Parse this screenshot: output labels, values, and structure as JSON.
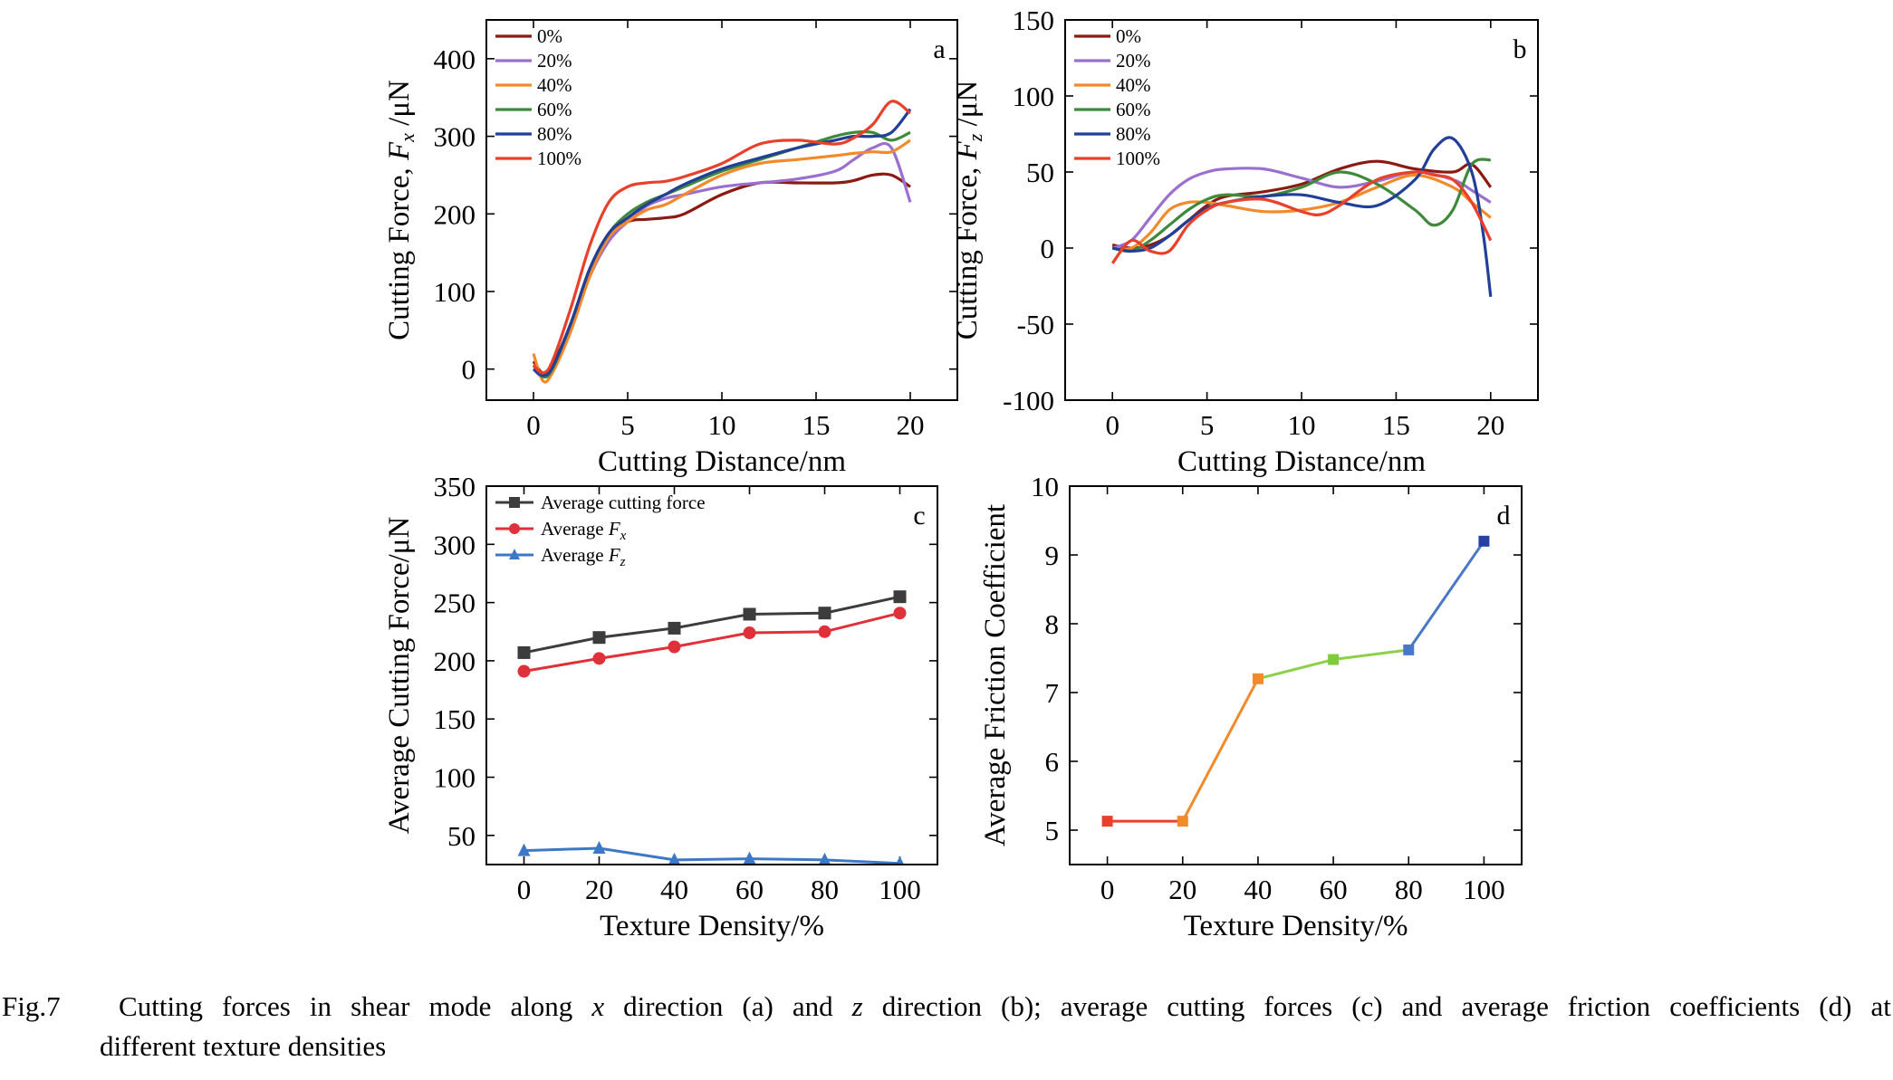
{
  "caption": {
    "label": "Fig.7",
    "parts": [
      "Cutting",
      "forces",
      "in",
      "shear",
      "mode",
      "along",
      "x",
      "direction",
      "(a)",
      "and",
      "z",
      "direction",
      "(b);",
      "average",
      "cutting",
      "forces",
      "(c)",
      "and",
      "average",
      "friction",
      "coefficients",
      "(d)",
      "at"
    ],
    "italic_words": [
      "x",
      "z"
    ],
    "line2": "different texture densities"
  },
  "chart_data": [
    {
      "panel": "a",
      "type": "line",
      "xlabel": "Cutting Distance/nm",
      "ylabel": "Cutting Force, F_x /μN",
      "ylabel_parts": [
        "Cutting Force, ",
        "F",
        "x",
        " /μN"
      ],
      "xlim": [
        -2.5,
        22.5
      ],
      "ylim": [
        -40,
        450
      ],
      "xticks": [
        0,
        5,
        10,
        15,
        20
      ],
      "yticks": [
        0,
        100,
        200,
        300,
        400
      ],
      "legend": "top-left",
      "series": [
        {
          "name": "0%",
          "color": "#8b1a12",
          "x": [
            0,
            0.5,
            1,
            2,
            3,
            4,
            5,
            6,
            7,
            8,
            10,
            12,
            14,
            16,
            17,
            18,
            19,
            20
          ],
          "y": [
            10,
            -5,
            5,
            60,
            130,
            170,
            190,
            193,
            195,
            200,
            225,
            240,
            240,
            240,
            243,
            250,
            250,
            235
          ]
        },
        {
          "name": "20%",
          "color": "#9a6fce",
          "x": [
            0,
            0.5,
            1,
            2,
            3,
            4,
            5,
            6,
            7,
            8,
            10,
            12,
            14,
            16,
            17,
            18,
            19,
            20
          ],
          "y": [
            0,
            -10,
            0,
            55,
            120,
            165,
            190,
            210,
            220,
            225,
            235,
            240,
            245,
            255,
            270,
            285,
            285,
            215
          ]
        },
        {
          "name": "40%",
          "color": "#f28a2c",
          "x": [
            0,
            0.5,
            1,
            2,
            3,
            4,
            5,
            6,
            7,
            8,
            10,
            12,
            14,
            16,
            17,
            18,
            19,
            20
          ],
          "y": [
            20,
            -15,
            -5,
            50,
            120,
            170,
            190,
            205,
            212,
            225,
            250,
            265,
            270,
            275,
            278,
            280,
            280,
            295
          ]
        },
        {
          "name": "60%",
          "color": "#3e8a3a",
          "x": [
            0,
            0.5,
            1,
            2,
            3,
            4,
            5,
            6,
            7,
            8,
            10,
            12,
            14,
            16,
            17,
            18,
            19,
            20
          ],
          "y": [
            5,
            -10,
            0,
            60,
            130,
            175,
            200,
            215,
            225,
            235,
            255,
            270,
            285,
            300,
            305,
            305,
            295,
            305
          ]
        },
        {
          "name": "80%",
          "color": "#223f98",
          "x": [
            0,
            0.5,
            1,
            2,
            3,
            4,
            5,
            6,
            7,
            8,
            10,
            12,
            14,
            16,
            17,
            18,
            19,
            20
          ],
          "y": [
            0,
            -8,
            2,
            60,
            130,
            175,
            195,
            212,
            225,
            238,
            258,
            272,
            285,
            295,
            300,
            300,
            305,
            335
          ]
        },
        {
          "name": "100%",
          "color": "#e8402a",
          "x": [
            0,
            0.5,
            1,
            2,
            3,
            4,
            5,
            6,
            7,
            8,
            10,
            12,
            14,
            16,
            17,
            18,
            19,
            20
          ],
          "y": [
            5,
            -5,
            10,
            80,
            160,
            215,
            235,
            240,
            242,
            248,
            265,
            290,
            295,
            290,
            298,
            315,
            345,
            330
          ]
        }
      ]
    },
    {
      "panel": "b",
      "type": "line",
      "xlabel": "Cutting Distance/nm",
      "ylabel": "Cutting Force, F_z /μN",
      "ylabel_parts": [
        "Cutting Force, ",
        "F",
        "z",
        " /μN"
      ],
      "xlim": [
        -2.5,
        22.5
      ],
      "ylim": [
        -100,
        150
      ],
      "xticks": [
        0,
        5,
        10,
        15,
        20
      ],
      "yticks": [
        -100,
        -50,
        0,
        50,
        100,
        150
      ],
      "legend": "top-left",
      "series": [
        {
          "name": "0%",
          "color": "#8b1a12",
          "x": [
            0,
            1,
            2,
            3,
            4,
            5,
            6,
            8,
            10,
            12,
            14,
            16,
            18,
            19,
            20
          ],
          "y": [
            2,
            0,
            2,
            8,
            18,
            28,
            34,
            37,
            42,
            52,
            57,
            52,
            50,
            55,
            40
          ]
        },
        {
          "name": "20%",
          "color": "#9a6fce",
          "x": [
            0,
            1,
            2,
            3,
            4,
            5,
            6,
            8,
            10,
            12,
            14,
            16,
            18,
            19,
            20
          ],
          "y": [
            0,
            5,
            20,
            35,
            45,
            50,
            52,
            52,
            46,
            40,
            44,
            50,
            45,
            38,
            30
          ]
        },
        {
          "name": "40%",
          "color": "#f28a2c",
          "x": [
            0,
            1,
            2,
            3,
            4,
            5,
            6,
            8,
            10,
            12,
            14,
            16,
            18,
            19,
            20
          ],
          "y": [
            0,
            0,
            10,
            25,
            30,
            30,
            28,
            24,
            25,
            30,
            40,
            48,
            40,
            30,
            20
          ]
        },
        {
          "name": "60%",
          "color": "#3e8a3a",
          "x": [
            0,
            1,
            2,
            3,
            4,
            5,
            6,
            8,
            10,
            12,
            14,
            16,
            17,
            18,
            19,
            20
          ],
          "y": [
            0,
            -2,
            5,
            15,
            25,
            32,
            35,
            34,
            40,
            50,
            42,
            25,
            15,
            25,
            55,
            58
          ]
        },
        {
          "name": "80%",
          "color": "#223f98",
          "x": [
            0,
            1,
            2,
            3,
            4,
            5,
            6,
            8,
            10,
            12,
            14,
            16,
            17,
            18,
            19,
            19.6,
            20
          ],
          "y": [
            0,
            -2,
            0,
            8,
            18,
            26,
            30,
            34,
            35,
            30,
            28,
            45,
            65,
            72,
            50,
            10,
            -32
          ]
        },
        {
          "name": "100%",
          "color": "#e8402a",
          "x": [
            0,
            1,
            2,
            3,
            4,
            5,
            6,
            8,
            10,
            11,
            12,
            14,
            16,
            17,
            18,
            19,
            20
          ],
          "y": [
            -10,
            5,
            -2,
            -2,
            15,
            25,
            30,
            32,
            24,
            22,
            28,
            45,
            50,
            48,
            45,
            30,
            5
          ]
        }
      ]
    },
    {
      "panel": "c",
      "type": "line",
      "xlabel": "Texture Density/%",
      "ylabel": "Average Cutting Force/μN",
      "xlim": [
        -10,
        110
      ],
      "ylim": [
        25,
        350
      ],
      "xticks": [
        0,
        20,
        40,
        60,
        80,
        100
      ],
      "yticks": [
        50,
        100,
        150,
        200,
        250,
        300,
        350
      ],
      "legend": "top-left",
      "series": [
        {
          "name": "Average cutting force",
          "label_parts": [
            "Average cutting force",
            "",
            ""
          ],
          "color": "#3c3c3c",
          "marker": "square",
          "x": [
            0,
            20,
            40,
            60,
            80,
            100
          ],
          "y": [
            207,
            220,
            228,
            240,
            241,
            255
          ]
        },
        {
          "name": "Average F_x",
          "label_parts": [
            "Average ",
            "F",
            "x"
          ],
          "color": "#e0303a",
          "marker": "circle",
          "x": [
            0,
            20,
            40,
            60,
            80,
            100
          ],
          "y": [
            191,
            202,
            212,
            224,
            225,
            241
          ]
        },
        {
          "name": "Average F_z",
          "label_parts": [
            "Average ",
            "F",
            "z"
          ],
          "color": "#3c78c6",
          "marker": "triangle",
          "x": [
            0,
            20,
            40,
            60,
            80,
            100
          ],
          "y": [
            37,
            39,
            29,
            30,
            29,
            26
          ]
        }
      ]
    },
    {
      "panel": "d",
      "type": "line",
      "xlabel": "Texture Density/%",
      "ylabel": "Average Friction Coefficient",
      "xlim": [
        -10,
        110
      ],
      "ylim": [
        4.5,
        10
      ],
      "xticks": [
        0,
        20,
        40,
        60,
        80,
        100
      ],
      "yticks": [
        5,
        6,
        7,
        8,
        9,
        10
      ],
      "points": [
        {
          "x": 0,
          "y": 5.13,
          "color": "#e8402a"
        },
        {
          "x": 20,
          "y": 5.13,
          "color": "#f28a2c"
        },
        {
          "x": 40,
          "y": 7.2,
          "color": "#f28a2c"
        },
        {
          "x": 60,
          "y": 7.48,
          "color": "#7fcc3a"
        },
        {
          "x": 80,
          "y": 7.62,
          "color": "#4a78c8"
        },
        {
          "x": 100,
          "y": 9.2,
          "color": "#2840a0"
        }
      ],
      "segment_colors": [
        "#e8402a",
        "#f28a2c",
        "#8ccf48",
        "#8ccf48",
        "#4a78c8"
      ]
    }
  ]
}
